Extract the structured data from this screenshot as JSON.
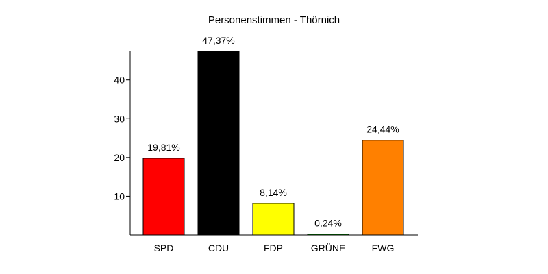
{
  "chart_data": {
    "type": "bar",
    "title": "Personenstimmen - Thörnich",
    "xlabel": "",
    "ylabel": "",
    "ylim": [
      0,
      47.37
    ],
    "yticks": [
      10,
      20,
      30,
      40
    ],
    "categories": [
      "SPD",
      "CDU",
      "FDP",
      "GRÜNE",
      "FWG"
    ],
    "values": [
      19.81,
      47.37,
      8.14,
      0.24,
      24.44
    ],
    "value_labels": [
      "19,81%",
      "47,37%",
      "8,14%",
      "0,24%",
      "24,44%"
    ],
    "colors": [
      "#ff0000",
      "#000000",
      "#ffff00",
      "#00aa00",
      "#ff8000"
    ],
    "grid": false,
    "legend": "none"
  }
}
